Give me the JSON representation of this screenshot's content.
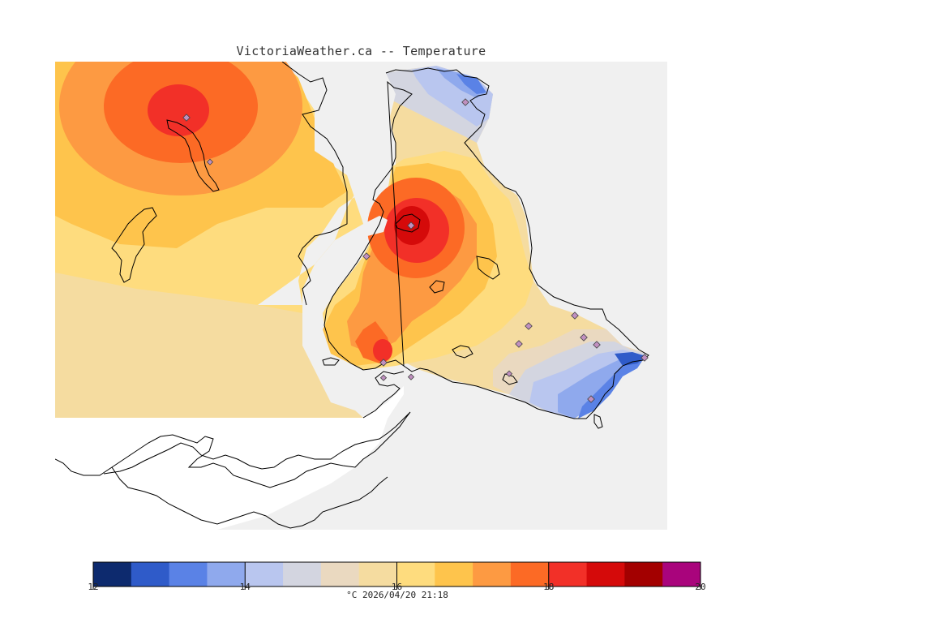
{
  "title": "VictoriaWeather.ca -- Temperature",
  "caption": "°C  2026/04/20 21:18",
  "colorbar": {
    "min": 12,
    "max": 20,
    "step": 0.5,
    "tick_labels": [
      "12",
      "14",
      "16",
      "18",
      "20"
    ],
    "tick_values": [
      12,
      14,
      16,
      18,
      20
    ],
    "colors": [
      "#0d2a6e",
      "#2f5bc9",
      "#5a82e6",
      "#8fa9ed",
      "#b9c6ef",
      "#d3d5e0",
      "#ead9c0",
      "#f5dca0",
      "#fedc7e",
      "#fec44c",
      "#fd9a42",
      "#fc6a25",
      "#f23028",
      "#d50a0a",
      "#a30000",
      "#a9047c"
    ]
  },
  "stations": [
    {
      "name": "",
      "lon_rel": 0.21,
      "lat_rel": 0.12
    },
    {
      "name": "",
      "lon_rel": 0.67,
      "lat_rel": 0.09
    },
    {
      "name": "",
      "lon_rel": 0.58,
      "lat_rel": 0.36
    },
    {
      "name": "",
      "lon_rel": 0.52,
      "lat_rel": 0.42
    }
  ]
}
